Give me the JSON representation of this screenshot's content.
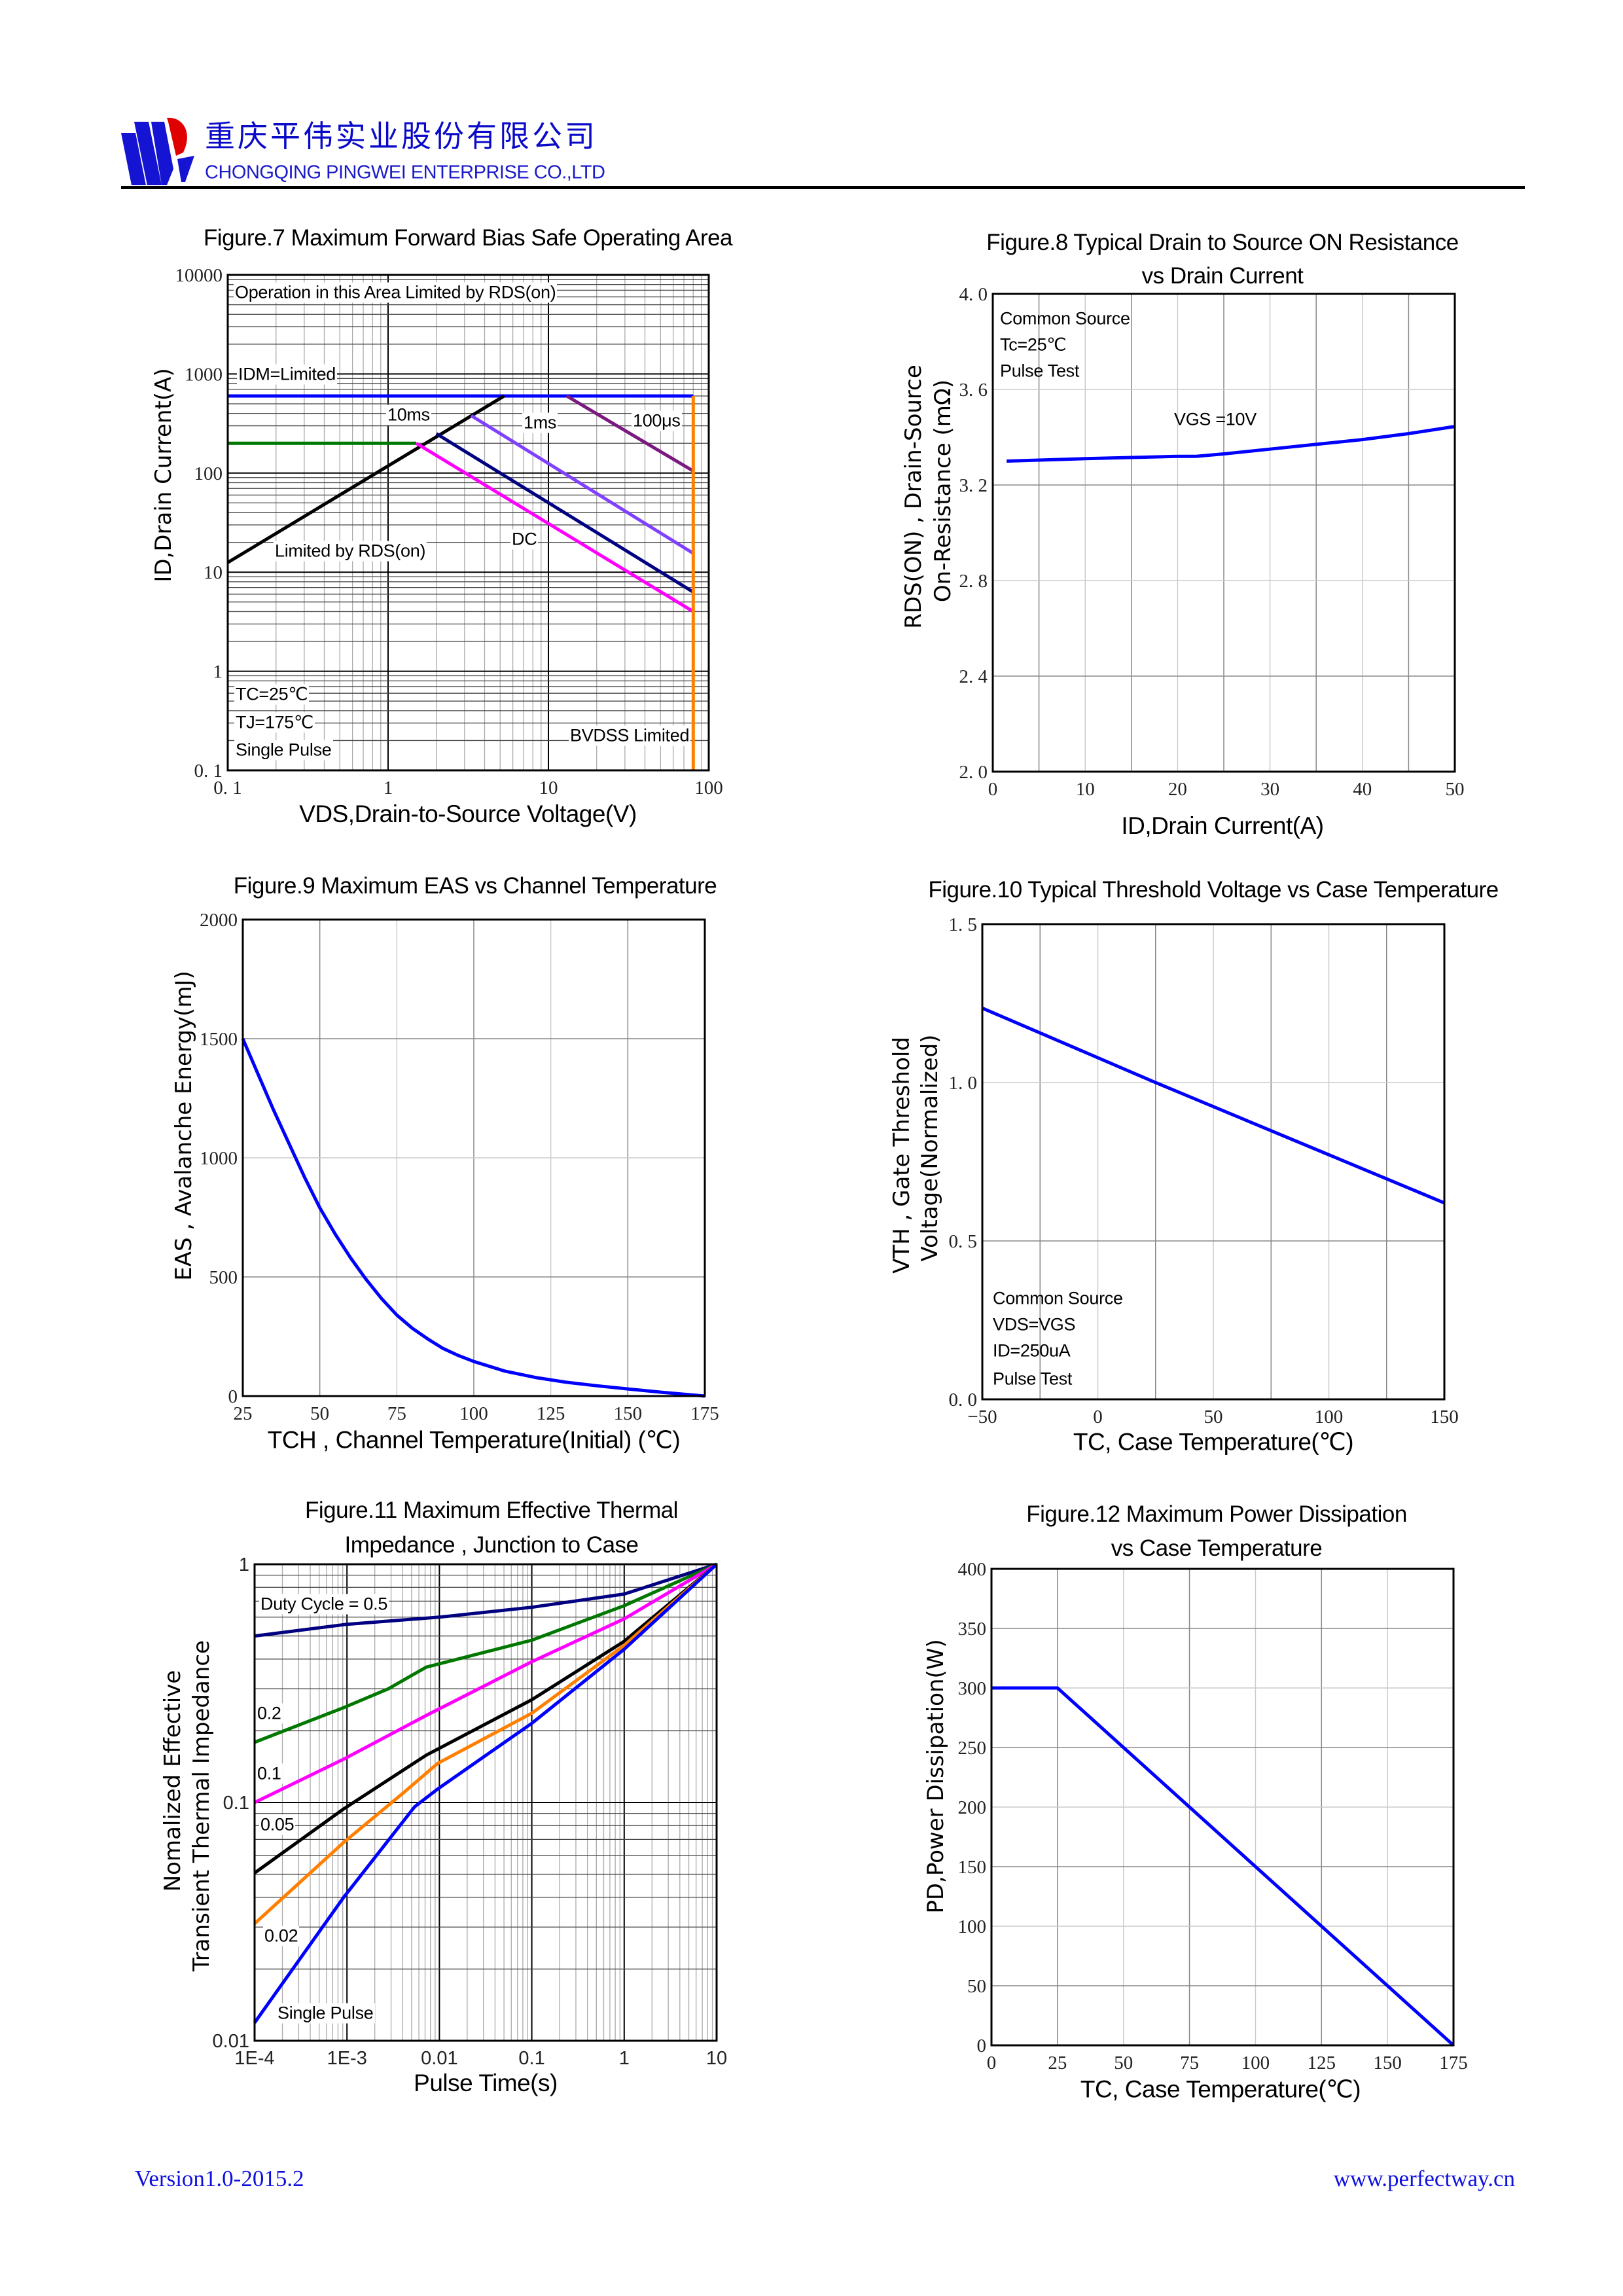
{
  "header": {
    "company_cn": "重庆平伟实业股份有限公司",
    "company_en": "CHONGQING PINGWEI ENTERPRISE CO.,LTD",
    "logo_colors": {
      "blue": "#1414d2",
      "red": "#e00000"
    }
  },
  "footer": {
    "version": "Version1.0-2015.2",
    "website": "www.perfectway.cn"
  },
  "chart_data": [
    {
      "type": "line",
      "title": [
        "Figure.7 Maximum Forward Bias Safe Operating Area"
      ],
      "xlabel": "VDS,Drain-to-Source Voltage(V)",
      "ylabel": [
        "ID,Drain Current(A)"
      ],
      "x_scale": "log",
      "y_scale": "log",
      "xlim": [
        0.1,
        100
      ],
      "ylim": [
        0.1,
        10000
      ],
      "grid": true,
      "xticks": {
        "values": [
          0.1,
          1,
          10,
          100
        ],
        "labels": [
          "0. 1",
          "1",
          "10",
          "100"
        ]
      },
      "yticks": {
        "values": [
          0.1,
          1,
          10,
          100,
          1000,
          10000
        ],
        "labels": [
          "0. 1",
          "1",
          "10",
          "100",
          "1000",
          "10000"
        ]
      },
      "annotations": [
        "Operation in this Area Limited by RDS(on)",
        "IDM=Limited",
        "10ms",
        "1ms",
        "100μs",
        "Limited by RDS(on)",
        "DC",
        "TC=25℃",
        "TJ=175℃",
        "Single Pulse",
        "BVDSS Limited"
      ],
      "series": [
        {
          "color": "#0000ff",
          "points": [
            [
              0.1,
              600
            ],
            [
              80,
              600
            ]
          ]
        },
        {
          "color": "#007800",
          "points": [
            [
              0.1,
              200
            ],
            [
              1.5,
              200
            ]
          ]
        },
        {
          "color": "#000000",
          "points": [
            [
              0.1,
              12.5
            ],
            [
              5.3,
              600
            ]
          ]
        },
        {
          "color": "#ff00ff",
          "points": [
            [
              1.5,
              200
            ],
            [
              80,
              4
            ]
          ]
        },
        {
          "color": "#000080",
          "points": [
            [
              2,
              250
            ],
            [
              80,
              6.3
            ]
          ]
        },
        {
          "color": "#8040ff",
          "points": [
            [
              3.3,
              380
            ],
            [
              80,
              15.5
            ]
          ]
        },
        {
          "color": "#7a1a80",
          "points": [
            [
              13,
              600
            ],
            [
              80,
              105
            ]
          ]
        },
        {
          "color": "#ff8000",
          "points": [
            [
              80,
              0.1
            ],
            [
              80,
              600
            ]
          ]
        }
      ]
    },
    {
      "type": "line",
      "title": [
        "Figure.8 Typical Drain to Source ON Resistance",
        "vs Drain Current"
      ],
      "xlabel": "ID,Drain Current(A)",
      "ylabel": [
        "RDS(ON) , Drain-Source",
        "On-Resistance (mΩ)"
      ],
      "xlim": [
        0,
        50
      ],
      "ylim": [
        2.0,
        4.0
      ],
      "grid": true,
      "xticks": {
        "values": [
          0,
          10,
          20,
          30,
          40,
          50
        ],
        "labels": [
          "0",
          "10",
          "20",
          "30",
          "40",
          "50"
        ]
      },
      "yticks": {
        "values": [
          2.0,
          2.4,
          2.8,
          3.2,
          3.6,
          4.0
        ],
        "labels": [
          "2. 0",
          "2. 4",
          "2. 8",
          "3. 2",
          "3. 6",
          "4. 0"
        ]
      },
      "annotations": [
        "Common Source",
        "Tc=25℃",
        "Pulse Test",
        "VGS =10V"
      ],
      "series": [
        {
          "name": "VGS =10V",
          "color": "#0000ff",
          "points": [
            [
              1.5,
              3.3
            ],
            [
              10,
              3.31
            ],
            [
              20,
              3.32
            ],
            [
              22,
              3.32
            ],
            [
              25,
              3.33
            ],
            [
              30,
              3.35
            ],
            [
              35,
              3.37
            ],
            [
              40,
              3.39
            ],
            [
              45,
              3.415
            ],
            [
              50,
              3.445
            ]
          ]
        }
      ]
    },
    {
      "type": "line",
      "title": [
        "Figure.9 Maximum EAS vs Channel Temperature"
      ],
      "xlabel": "TCH , Channel Temperature(Initial) (℃)",
      "ylabel": [
        "EAS , Avalanche Energy(mJ)"
      ],
      "xlim": [
        25,
        175
      ],
      "ylim": [
        0,
        2000
      ],
      "grid": true,
      "xticks": {
        "values": [
          25,
          50,
          75,
          100,
          125,
          150,
          175
        ],
        "labels": [
          "25",
          "50",
          "75",
          "100",
          "125",
          "150",
          "175"
        ]
      },
      "yticks": {
        "values": [
          0,
          500,
          1000,
          1500,
          2000
        ],
        "labels": [
          "0",
          "500",
          "1000",
          "1500",
          "2000"
        ]
      },
      "annotations": [],
      "series": [
        {
          "color": "#0000ff",
          "points": [
            [
              25,
              1500
            ],
            [
              30,
              1350
            ],
            [
              35,
              1200
            ],
            [
              40,
              1060
            ],
            [
              45,
              920
            ],
            [
              50,
              790
            ],
            [
              55,
              680
            ],
            [
              60,
              580
            ],
            [
              65,
              490
            ],
            [
              70,
              410
            ],
            [
              75,
              340
            ],
            [
              80,
              285
            ],
            [
              85,
              240
            ],
            [
              90,
              200
            ],
            [
              95,
              170
            ],
            [
              100,
              145
            ],
            [
              110,
              105
            ],
            [
              120,
              78
            ],
            [
              130,
              58
            ],
            [
              140,
              43
            ],
            [
              150,
              30
            ],
            [
              160,
              17
            ],
            [
              175,
              0
            ]
          ]
        }
      ]
    },
    {
      "type": "line",
      "title": [
        "Figure.10 Typical Threshold Voltage vs Case Temperature"
      ],
      "xlabel": "TC, Case Temperature(℃)",
      "ylabel": [
        "VTH , Gate Threshold",
        "Voltage(Normalized)"
      ],
      "xlim": [
        -50,
        150
      ],
      "ylim": [
        0.0,
        1.5
      ],
      "grid": true,
      "xticks": {
        "values": [
          -50,
          0,
          50,
          100,
          150
        ],
        "labels": [
          "−50",
          "0",
          "50",
          "100",
          "150"
        ]
      },
      "yticks": {
        "values": [
          0.0,
          0.5,
          1.0,
          1.5
        ],
        "labels": [
          "0. 0",
          "0. 5",
          "1. 0",
          "1. 5"
        ]
      },
      "annotations": [
        "Common Source",
        "VDS=VGS",
        "ID=250uA",
        "Pulse Test"
      ],
      "series": [
        {
          "color": "#0000ff",
          "points": [
            [
              -50,
              1.235
            ],
            [
              25,
              1.0
            ],
            [
              150,
              0.62
            ]
          ]
        }
      ]
    },
    {
      "type": "line",
      "title": [
        "Figure.11 Maximum Effective Thermal",
        "Impedance , Junction to Case"
      ],
      "xlabel": "Pulse Time(s)",
      "ylabel": [
        "Nomalized Effective",
        "Transient Thermal Impedance"
      ],
      "x_scale": "log",
      "y_scale": "log",
      "xlim": [
        0.0001,
        10
      ],
      "ylim": [
        0.01,
        1
      ],
      "grid": true,
      "xticks": {
        "values": [
          0.0001,
          0.001,
          0.01,
          0.1,
          1,
          10
        ],
        "labels": [
          "1E-4",
          "1E-3",
          "0.01",
          "0.1",
          "1",
          "10"
        ]
      },
      "yticks": {
        "values": [
          0.01,
          0.1,
          1
        ],
        "labels": [
          "0.01",
          "0.1",
          "1"
        ]
      },
      "annotations": [
        "Duty Cycle = 0.5",
        "0.2",
        "0.1",
        "0.05",
        "0.02",
        "Single Pulse"
      ],
      "series": [
        {
          "name": "Duty Cycle = 0.5",
          "color": "#000080",
          "points": [
            [
              0.0001,
              0.5
            ],
            [
              0.001,
              0.56
            ],
            [
              0.01,
              0.6
            ],
            [
              0.1,
              0.66
            ],
            [
              1,
              0.75
            ],
            [
              3,
              0.86
            ],
            [
              10,
              1
            ]
          ]
        },
        {
          "name": "0.2",
          "color": "#007800",
          "points": [
            [
              0.0001,
              0.179
            ],
            [
              0.00092,
              0.25
            ],
            [
              0.0028,
              0.3
            ],
            [
              0.0072,
              0.37
            ],
            [
              0.1,
              0.48
            ],
            [
              1,
              0.67
            ],
            [
              10,
              1
            ]
          ]
        },
        {
          "name": "0.1",
          "color": "#ff00ff",
          "points": [
            [
              0.0001,
              0.1
            ],
            [
              0.00092,
              0.152
            ],
            [
              0.0072,
              0.232
            ],
            [
              0.1,
              0.39
            ],
            [
              1,
              0.59
            ],
            [
              10,
              1
            ]
          ]
        },
        {
          "name": "0.05",
          "color": "#000000",
          "points": [
            [
              0.0001,
              0.0506
            ],
            [
              0.00092,
              0.094
            ],
            [
              0.0072,
              0.158
            ],
            [
              0.1,
              0.27
            ],
            [
              1,
              0.475
            ],
            [
              10,
              1
            ]
          ]
        },
        {
          "name": "0.02",
          "color": "#ff8000",
          "points": [
            [
              0.0001,
              0.031
            ],
            [
              0.00092,
              0.068
            ],
            [
              0.0041,
              0.11
            ],
            [
              0.0096,
              0.146
            ],
            [
              0.1,
              0.237
            ],
            [
              1,
              0.457
            ],
            [
              10,
              1
            ]
          ]
        },
        {
          "name": "Single Pulse",
          "color": "#0000ff",
          "points": [
            [
              0.0001,
              0.0119
            ],
            [
              0.00092,
              0.04
            ],
            [
              0.0054,
              0.096
            ],
            [
              0.0096,
              0.114
            ],
            [
              0.1,
              0.215
            ],
            [
              1,
              0.44
            ],
            [
              10,
              1
            ]
          ]
        }
      ]
    },
    {
      "type": "line",
      "title": [
        "Figure.12 Maximum Power Dissipation",
        "vs Case Temperature"
      ],
      "xlabel": "TC, Case Temperature(℃)",
      "ylabel": [
        "PD,Power Dissipation(W)"
      ],
      "xlim": [
        0,
        175
      ],
      "ylim": [
        0,
        400
      ],
      "grid": true,
      "xticks": {
        "values": [
          0,
          25,
          50,
          75,
          100,
          125,
          150,
          175
        ],
        "labels": [
          "0",
          "25",
          "50",
          "75",
          "100",
          "125",
          "150",
          "175"
        ]
      },
      "yticks": {
        "values": [
          0,
          50,
          100,
          150,
          200,
          250,
          300,
          350,
          400
        ],
        "labels": [
          "0",
          "50",
          "100",
          "150",
          "200",
          "250",
          "300",
          "350",
          "400"
        ]
      },
      "annotations": [],
      "series": [
        {
          "color": "#0000ff",
          "points": [
            [
              0,
              300
            ],
            [
              25,
              300
            ],
            [
              175,
              0
            ]
          ]
        }
      ]
    }
  ]
}
